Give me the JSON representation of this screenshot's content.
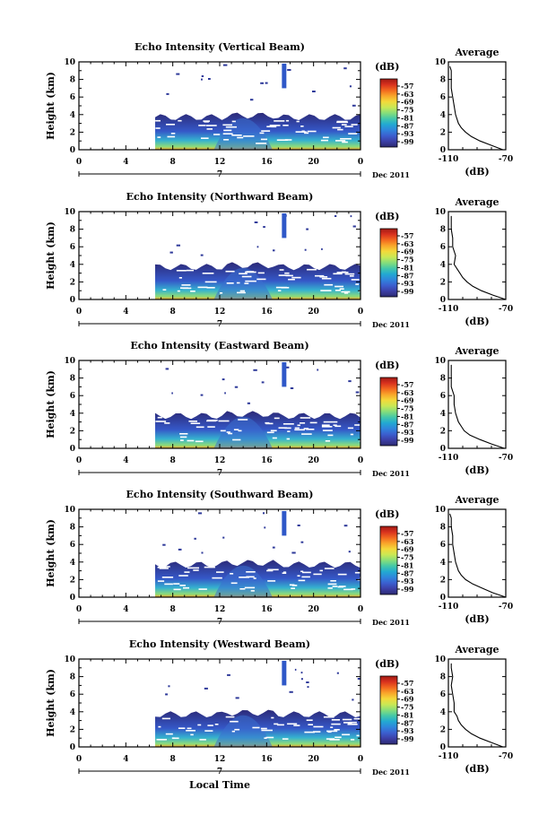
{
  "figure": {
    "xlabel_bottom": "Local Time",
    "colorbar_unit": "(dB)",
    "colorbar_ticks": [
      "-57",
      "-63",
      "-69",
      "-75",
      "-81",
      "-87",
      "-93",
      "-99"
    ],
    "colorbar_colors": [
      "#a11a14",
      "#d8311e",
      "#f2681f",
      "#f9a62b",
      "#f3d93a",
      "#c9e855",
      "#86de7a",
      "#44c8a9",
      "#22a9d2",
      "#2f85dc",
      "#3b5fcf",
      "#3c3fa6",
      "#2c2a70"
    ],
    "date_label": "Dec 2011",
    "day_marker": "7",
    "average_title": "Average",
    "average_xlabel": "(dB)",
    "average_xticks": [
      "-110",
      "-70"
    ],
    "average_xlim": [
      -110,
      -70
    ]
  },
  "chart_data": [
    {
      "type": "heatmap",
      "title": "Echo Intensity (Vertical Beam)",
      "ylabel": "Height (km)",
      "xlabel": "Local Time",
      "x_ticks": [
        "0",
        "4",
        "8",
        "12",
        "16",
        "20",
        "0"
      ],
      "y_ticks": [
        "0",
        "2",
        "4",
        "6",
        "8",
        "10"
      ],
      "xlim": [
        0,
        24
      ],
      "ylim": [
        0,
        10
      ],
      "colorbar_range": [
        -99,
        -57
      ],
      "data_start_hour": 6.5,
      "layer_top_km": 4,
      "average_profile": {
        "height": [
          0,
          0.5,
          1,
          1.5,
          2,
          2.5,
          3,
          3.5,
          4,
          5,
          6,
          7,
          8,
          9,
          9.5
        ],
        "value": [
          -72,
          -80,
          -88,
          -94,
          -98,
          -101,
          -103,
          -104,
          -105,
          -106,
          -107,
          -108,
          -108,
          -108,
          -109
        ]
      }
    },
    {
      "type": "heatmap",
      "title": "Echo Intensity (Northward Beam)",
      "ylabel": "Height (km)",
      "xlabel": "Local Time",
      "x_ticks": [
        "0",
        "4",
        "8",
        "12",
        "16",
        "20",
        "0"
      ],
      "y_ticks": [
        "0",
        "2",
        "4",
        "6",
        "8",
        "10"
      ],
      "xlim": [
        0,
        24
      ],
      "ylim": [
        0,
        10
      ],
      "colorbar_range": [
        -99,
        -57
      ],
      "data_start_hour": 6.5,
      "layer_top_km": 4,
      "average_profile": {
        "height": [
          0,
          0.5,
          1,
          1.5,
          2,
          2.5,
          3,
          3.5,
          4,
          5,
          6,
          7,
          8,
          9,
          9.5
        ],
        "value": [
          -70,
          -79,
          -87,
          -93,
          -97,
          -100,
          -102,
          -104,
          -106,
          -105,
          -107,
          -107,
          -108,
          -108,
          -108
        ]
      }
    },
    {
      "type": "heatmap",
      "title": "Echo Intensity (Eastward Beam)",
      "ylabel": "Height (km)",
      "xlabel": "Local Time",
      "x_ticks": [
        "0",
        "4",
        "8",
        "12",
        "16",
        "20",
        "0"
      ],
      "y_ticks": [
        "0",
        "2",
        "4",
        "6",
        "8",
        "10"
      ],
      "xlim": [
        0,
        24
      ],
      "ylim": [
        0,
        10
      ],
      "colorbar_range": [
        -99,
        -57
      ],
      "data_start_hour": 6.5,
      "layer_top_km": 4,
      "average_profile": {
        "height": [
          0,
          0.5,
          1,
          1.5,
          2,
          2.5,
          3,
          3.5,
          4,
          5,
          6,
          7,
          8,
          9,
          9.5
        ],
        "value": [
          -71,
          -80,
          -88,
          -95,
          -99,
          -101,
          -103,
          -104,
          -105,
          -106,
          -106,
          -108,
          -108,
          -108,
          -108
        ]
      }
    },
    {
      "type": "heatmap",
      "title": "Echo Intensity (Southward Beam)",
      "ylabel": "Height (km)",
      "xlabel": "Local Time",
      "x_ticks": [
        "0",
        "4",
        "8",
        "12",
        "16",
        "20",
        "0"
      ],
      "y_ticks": [
        "0",
        "2",
        "4",
        "6",
        "8",
        "10"
      ],
      "xlim": [
        0,
        24
      ],
      "ylim": [
        0,
        10
      ],
      "colorbar_range": [
        -99,
        -57
      ],
      "data_start_hour": 6.5,
      "layer_top_km": 4,
      "average_profile": {
        "height": [
          0,
          0.5,
          1,
          1.5,
          2,
          2.5,
          3,
          3.5,
          4,
          5,
          6,
          7,
          8,
          9,
          9.5
        ],
        "value": [
          -70,
          -79,
          -86,
          -93,
          -98,
          -101,
          -103,
          -104,
          -105,
          -106,
          -107,
          -107,
          -108,
          -108,
          -109
        ]
      }
    },
    {
      "type": "heatmap",
      "title": "Echo Intensity (Westward Beam)",
      "ylabel": "Height (km)",
      "xlabel": "Local Time",
      "x_ticks": [
        "0",
        "4",
        "8",
        "12",
        "16",
        "20",
        "0"
      ],
      "y_ticks": [
        "0",
        "2",
        "4",
        "6",
        "8",
        "10"
      ],
      "xlim": [
        0,
        24
      ],
      "ylim": [
        0,
        10
      ],
      "colorbar_range": [
        -99,
        -57
      ],
      "data_start_hour": 6.5,
      "layer_top_km": 4,
      "average_profile": {
        "height": [
          0,
          0.5,
          1,
          1.5,
          2,
          2.5,
          3,
          3.5,
          4,
          5,
          6,
          7,
          8,
          9,
          9.5
        ],
        "value": [
          -72,
          -80,
          -88,
          -94,
          -98,
          -101,
          -103,
          -104,
          -106,
          -106,
          -107,
          -108,
          -107,
          -108,
          -108
        ]
      }
    }
  ]
}
